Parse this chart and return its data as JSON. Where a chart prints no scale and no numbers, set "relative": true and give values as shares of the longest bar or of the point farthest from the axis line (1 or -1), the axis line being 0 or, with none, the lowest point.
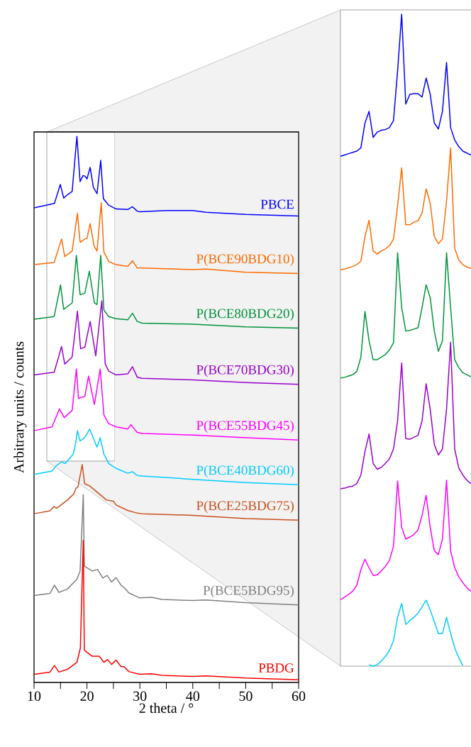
{
  "chart_data": [
    {
      "type": "line",
      "relative": true,
      "xlabel": "2 theta / °",
      "ylabel": "Arbitrary units / counts",
      "xlim": [
        10,
        60
      ],
      "xticks": [
        10,
        {
          "value": 15,
          "label": null
        },
        20,
        {
          "value": 25,
          "label": null
        },
        30,
        {
          "value": 35,
          "label": null
        },
        40,
        {
          "value": 45,
          "label": null
        },
        50,
        {
          "value": 55,
          "label": null
        },
        60
      ],
      "legend": false,
      "series": [
        {
          "name": "PBCE",
          "color": "#0000ff",
          "x": [
            10,
            13.85,
            14.96,
            15.6,
            16.3,
            17.2,
            18.1,
            18.7,
            19.25,
            19.65,
            20.0,
            20.6,
            21.2,
            21.9,
            22.6,
            23.1,
            24.1,
            25.5,
            27.7,
            28.6,
            29.5,
            30,
            35,
            40,
            42.5,
            50,
            60
          ],
          "values": [
            0.869,
            0.877,
            0.912,
            0.887,
            0.893,
            0.899,
            1.0,
            0.917,
            0.928,
            0.927,
            0.922,
            0.943,
            0.907,
            0.895,
            0.956,
            0.886,
            0.874,
            0.867,
            0.866,
            0.871,
            0.863,
            0.862,
            0.864,
            0.864,
            0.861,
            0.857,
            0.854
          ]
        },
        {
          "name": "P(BCE90BDG10)",
          "color": "#ff6a00",
          "x": [
            10,
            13.8,
            15.2,
            15.8,
            17.2,
            18.2,
            18.7,
            19.6,
            20.0,
            20.6,
            21.35,
            21.9,
            22.7,
            23.2,
            24.1,
            25.5,
            27.7,
            28.6,
            29.5,
            30.4,
            40,
            42.5,
            50,
            60
          ],
          "values": [
            0.765,
            0.769,
            0.812,
            0.78,
            0.79,
            0.859,
            0.806,
            0.812,
            0.813,
            0.84,
            0.799,
            0.79,
            0.878,
            0.788,
            0.771,
            0.765,
            0.762,
            0.772,
            0.759,
            0.759,
            0.756,
            0.757,
            0.751,
            0.749
          ]
        },
        {
          "name": "P(BCE80BDG20)",
          "color": "#00933a",
          "x": [
            10,
            13.8,
            15.0,
            15.6,
            17.2,
            18.0,
            18.7,
            19.6,
            20.45,
            21.4,
            21.9,
            22.6,
            23.2,
            24.1,
            25.5,
            27.7,
            28.6,
            29.5,
            30.4,
            40,
            50,
            60
          ],
          "values": [
            0.665,
            0.67,
            0.728,
            0.683,
            0.695,
            0.782,
            0.71,
            0.713,
            0.753,
            0.695,
            0.692,
            0.782,
            0.682,
            0.67,
            0.666,
            0.664,
            0.676,
            0.661,
            0.658,
            0.656,
            0.651,
            0.649
          ]
        },
        {
          "name": "P(BCE70BDG30)",
          "color": "#9900cc",
          "x": [
            10,
            13.8,
            15.2,
            15.8,
            17.2,
            18.2,
            18.8,
            19.6,
            20.6,
            21.66,
            22.8,
            23.45,
            24.1,
            25.5,
            27.7,
            28.6,
            29.5,
            30.4,
            40,
            50,
            60
          ],
          "values": [
            0.563,
            0.568,
            0.615,
            0.583,
            0.596,
            0.68,
            0.611,
            0.614,
            0.661,
            0.598,
            0.699,
            0.583,
            0.57,
            0.563,
            0.565,
            0.578,
            0.559,
            0.557,
            0.554,
            0.549,
            0.546
          ]
        },
        {
          "name": "P(BCE55BDG45)",
          "color": "#ff00ff",
          "x": [
            10,
            13.4,
            14.8,
            15.7,
            17.2,
            18.0,
            18.4,
            19.6,
            20.3,
            21.4,
            22.5,
            23.2,
            24.1,
            25.5,
            27.7,
            28.3,
            29.5,
            30.4,
            40,
            50,
            60
          ],
          "values": [
            0.461,
            0.468,
            0.501,
            0.485,
            0.498,
            0.574,
            0.52,
            0.524,
            0.561,
            0.509,
            0.574,
            0.49,
            0.474,
            0.468,
            0.464,
            0.472,
            0.458,
            0.456,
            0.453,
            0.448,
            0.444
          ]
        },
        {
          "name": "P(BCE40BDG60)",
          "color": "#00ccff",
          "x": [
            10,
            13.4,
            14.1,
            15.2,
            15.9,
            17.4,
            17.9,
            18.2,
            18.7,
            19.6,
            20.5,
            21.9,
            22.5,
            23.2,
            24.1,
            25.5,
            27.7,
            28.6,
            29.5,
            30.4,
            40,
            50,
            60
          ],
          "values": [
            0.381,
            0.387,
            0.396,
            0.404,
            0.401,
            0.418,
            0.44,
            0.461,
            0.442,
            0.449,
            0.464,
            0.431,
            0.448,
            0.418,
            0.401,
            0.392,
            0.383,
            0.386,
            0.379,
            0.378,
            0.372,
            0.366,
            0.362
          ]
        },
        {
          "name": "P(BCE25BDG75)",
          "color": "#c8501e",
          "x": [
            10,
            12.95,
            13.75,
            14.3,
            16.3,
            17.5,
            17.9,
            18.3,
            19.1,
            19.56,
            20.5,
            22.1,
            23.7,
            25.0,
            25.5,
            27.7,
            29.5,
            30.4,
            40,
            50,
            60
          ],
          "values": [
            0.309,
            0.314,
            0.322,
            0.319,
            0.334,
            0.345,
            0.355,
            0.358,
            0.399,
            0.364,
            0.36,
            0.347,
            0.334,
            0.332,
            0.325,
            0.315,
            0.31,
            0.309,
            0.306,
            0.3,
            0.297
          ]
        },
        {
          "name": "P(BCE5BDG95)",
          "color": "#808080",
          "x": [
            10,
            13.0,
            13.85,
            14.7,
            16.3,
            18.1,
            18.7,
            19.3,
            19.5,
            21.0,
            22.0,
            23.0,
            23.8,
            24.65,
            25.5,
            26.45,
            27.0,
            27.9,
            29.9,
            32.2,
            34.2,
            40,
            42.5,
            50,
            60
          ],
          "values": [
            0.159,
            0.163,
            0.178,
            0.165,
            0.171,
            0.189,
            0.204,
            0.344,
            0.213,
            0.204,
            0.207,
            0.191,
            0.196,
            0.184,
            0.192,
            0.178,
            0.174,
            0.164,
            0.155,
            0.156,
            0.152,
            0.15,
            0.151,
            0.146,
            0.142
          ]
        },
        {
          "name": "PBDG",
          "color": "#ff0000",
          "x": [
            10,
            13.0,
            13.85,
            14.7,
            16.3,
            18.1,
            18.75,
            19.3,
            19.5,
            21.0,
            22.3,
            23.2,
            23.9,
            24.65,
            25.5,
            26.45,
            27.0,
            27.9,
            29.9,
            32.2,
            34.2,
            40,
            42.5,
            50,
            60
          ],
          "values": [
            0.015,
            0.019,
            0.031,
            0.019,
            0.024,
            0.037,
            0.063,
            0.26,
            0.059,
            0.048,
            0.048,
            0.037,
            0.042,
            0.033,
            0.041,
            0.029,
            0.029,
            0.02,
            0.015,
            0.016,
            0.013,
            0.011,
            0.012,
            0.008,
            0.005
          ]
        }
      ]
    },
    {
      "type": "line",
      "relative": true,
      "categories": [
        null,
        null,
        null,
        null,
        null,
        null,
        null,
        null,
        null,
        null,
        null,
        null,
        null,
        null,
        null,
        null,
        null,
        null,
        null,
        null,
        null,
        null,
        null,
        null,
        null,
        null,
        null,
        null,
        null,
        null,
        null,
        null,
        null
      ],
      "series": [
        {
          "color": "#0000ff",
          "values": [
            0.782,
            0.784,
            0.786,
            0.788,
            0.79,
            0.795,
            0.833,
            0.851,
            0.811,
            0.819,
            0.822,
            0.823,
            0.826,
            0.837,
            0.913,
            1.0,
            0.862,
            0.877,
            0.878,
            0.878,
            0.873,
            0.902,
            0.877,
            0.833,
            0.824,
            0.851,
            0.926,
            0.826,
            0.807,
            0.797,
            0.79,
            0.787,
            0.784
          ]
        },
        {
          "color": "#ff6a00",
          "values": [
            0.608,
            0.609,
            0.611,
            0.613,
            0.616,
            0.621,
            0.659,
            0.684,
            0.637,
            0.632,
            0.637,
            0.64,
            0.645,
            0.655,
            0.706,
            0.764,
            0.677,
            0.677,
            0.681,
            0.683,
            0.695,
            0.732,
            0.71,
            0.659,
            0.648,
            0.655,
            0.713,
            0.795,
            0.641,
            0.623,
            0.616,
            0.612,
            0.61
          ]
        },
        {
          "color": "#00933a",
          "values": [
            0.442,
            0.443,
            0.445,
            0.447,
            0.452,
            0.474,
            0.544,
            0.499,
            0.47,
            0.47,
            0.474,
            0.478,
            0.485,
            0.496,
            0.634,
            0.55,
            0.514,
            0.515,
            0.517,
            0.519,
            0.55,
            0.585,
            0.565,
            0.514,
            0.483,
            0.499,
            0.634,
            0.55,
            0.47,
            0.458,
            0.45,
            0.447,
            0.444
          ]
        },
        {
          "color": "#9900cc",
          "values": [
            0.272,
            0.273,
            0.275,
            0.276,
            0.28,
            0.293,
            0.329,
            0.356,
            0.311,
            0.302,
            0.305,
            0.311,
            0.318,
            0.333,
            0.376,
            0.465,
            0.349,
            0.348,
            0.351,
            0.354,
            0.376,
            0.433,
            0.394,
            0.34,
            0.324,
            0.333,
            0.394,
            0.497,
            0.333,
            0.304,
            0.293,
            0.285,
            0.28
          ]
        },
        {
          "color": "#ff00ff",
          "values": [
            0.102,
            0.106,
            0.11,
            0.115,
            0.124,
            0.148,
            0.164,
            0.151,
            0.139,
            0.14,
            0.146,
            0.153,
            0.162,
            0.184,
            0.284,
            0.213,
            0.195,
            0.198,
            0.202,
            0.209,
            0.231,
            0.262,
            0.213,
            0.177,
            0.171,
            0.195,
            0.285,
            0.177,
            0.151,
            0.137,
            0.128,
            0.12,
            0.115
          ]
        },
        {
          "color": "#00ccff",
          "values": [
            null,
            null,
            null,
            null,
            null,
            null,
            null,
            0.002,
            0.0,
            0.002,
            0.008,
            0.015,
            0.024,
            0.039,
            0.075,
            0.096,
            0.064,
            0.07,
            0.075,
            0.081,
            0.091,
            0.101,
            0.086,
            0.068,
            0.05,
            0.05,
            0.075,
            0.05,
            0.028,
            0.013,
            0.001,
            null,
            null
          ]
        }
      ]
    }
  ]
}
